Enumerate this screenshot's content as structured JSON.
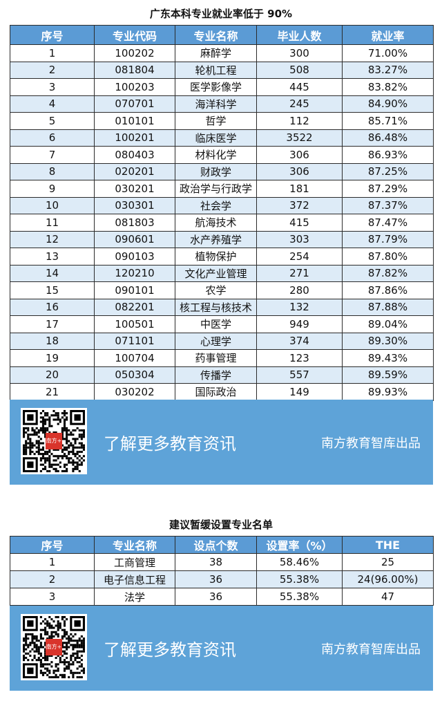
{
  "table1": {
    "title": "广东本科专业就业率低于 90%",
    "headers": [
      "序号",
      "专业代码",
      "专业名称",
      "毕业人数",
      "就业率"
    ],
    "rows": [
      [
        "1",
        "100202",
        "麻醉学",
        "300",
        "71.00%"
      ],
      [
        "2",
        "081804",
        "轮机工程",
        "508",
        "83.27%"
      ],
      [
        "3",
        "100203",
        "医学影像学",
        "445",
        "83.82%"
      ],
      [
        "4",
        "070701",
        "海洋科学",
        "245",
        "84.90%"
      ],
      [
        "5",
        "010101",
        "哲学",
        "112",
        "85.71%"
      ],
      [
        "6",
        "100201",
        "临床医学",
        "3522",
        "86.48%"
      ],
      [
        "7",
        "080403",
        "材料化学",
        "306",
        "86.93%"
      ],
      [
        "8",
        "020201",
        "财政学",
        "306",
        "87.25%"
      ],
      [
        "9",
        "030201",
        "政治学与行政学",
        "181",
        "87.29%"
      ],
      [
        "10",
        "030301",
        "社会学",
        "372",
        "87.37%"
      ],
      [
        "11",
        "081803",
        "航海技术",
        "415",
        "87.47%"
      ],
      [
        "12",
        "090601",
        "水产养殖学",
        "303",
        "87.79%"
      ],
      [
        "13",
        "090103",
        "植物保护",
        "254",
        "87.80%"
      ],
      [
        "14",
        "120210",
        "文化产业管理",
        "271",
        "87.82%"
      ],
      [
        "15",
        "090101",
        "农学",
        "280",
        "87.86%"
      ],
      [
        "16",
        "082201",
        "核工程与核技术",
        "132",
        "87.88%"
      ],
      [
        "17",
        "100501",
        "中医学",
        "949",
        "89.04%"
      ],
      [
        "18",
        "071101",
        "心理学",
        "374",
        "89.30%"
      ],
      [
        "19",
        "100704",
        "药事管理",
        "123",
        "89.43%"
      ],
      [
        "20",
        "050304",
        "传播学",
        "557",
        "89.59%"
      ],
      [
        "21",
        "030202",
        "国际政治",
        "149",
        "89.93%"
      ]
    ]
  },
  "table2": {
    "title": "建议暂缓设置专业名单",
    "headers": [
      "序号",
      "专业名称",
      "设点个数",
      "设置率（%）",
      "THE"
    ],
    "rows": [
      [
        "1",
        "工商管理",
        "38",
        "58.46%",
        "25"
      ],
      [
        "2",
        "电子信息工程",
        "36",
        "55.38%",
        "24(96.00%)"
      ],
      [
        "3",
        "法学",
        "36",
        "55.38%",
        "47"
      ]
    ]
  },
  "banner": {
    "main_text": "了解更多教育资讯",
    "right_text": "南方教育智库出品",
    "qr_logo": "南方+",
    "icon": "qr-code-icon"
  },
  "colors": {
    "header": "#5b9bd5",
    "alt_row": "#ddebf7",
    "banner": "#5ea3d8"
  }
}
